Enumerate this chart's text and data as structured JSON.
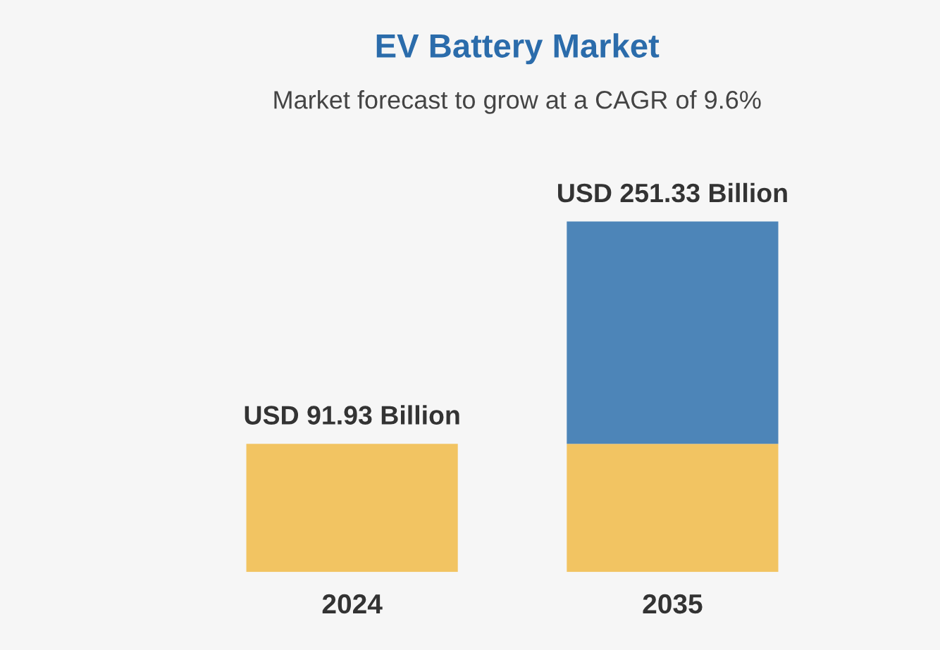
{
  "chart_data": {
    "type": "bar",
    "title": "EV Battery Market",
    "subtitle": "Market forecast to grow at a CAGR of 9.6%",
    "categories": [
      "2024",
      "2035"
    ],
    "stacked": true,
    "series": [
      {
        "color": "#f2c462",
        "values": [
          91.93,
          91.93
        ],
        "value_labels": [
          "USD 91.93 Billion",
          null
        ]
      },
      {
        "color": "#4d85b8",
        "values": [
          null,
          159.4
        ]
      }
    ],
    "totals": [
      null,
      "USD 251.33 Billion"
    ],
    "tick_labels": "x",
    "grid": false,
    "legend": false
  }
}
